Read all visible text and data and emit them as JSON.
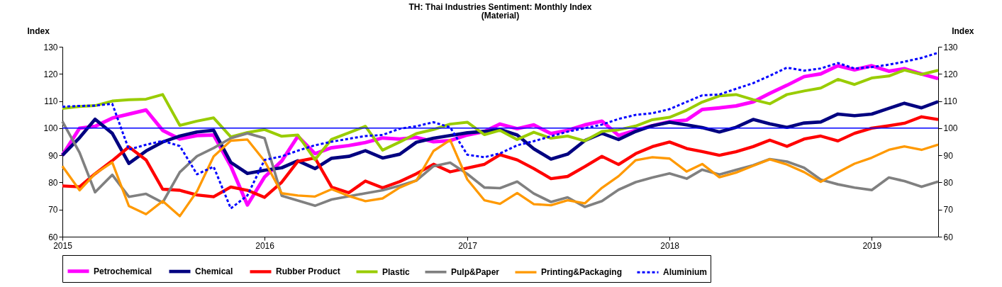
{
  "chart_data": {
    "type": "line",
    "title": "TH: Thai Industries Sentiment: Monthly Index",
    "subtitle": "(Material)",
    "ylabel": "Index",
    "y2label": "Index",
    "x": [
      "2015-01",
      "2015-02",
      "2015-03",
      "2015-04",
      "2015-05",
      "2015-06",
      "2015-07",
      "2015-08",
      "2015-09",
      "2015-10",
      "2015-11",
      "2015-12",
      "2016-01",
      "2016-02",
      "2016-03",
      "2016-04",
      "2016-05",
      "2016-06",
      "2016-07",
      "2016-08",
      "2016-09",
      "2016-10",
      "2016-11",
      "2016-12",
      "2017-01",
      "2017-02",
      "2017-03",
      "2017-04",
      "2017-05",
      "2017-06",
      "2017-07",
      "2017-08",
      "2017-09",
      "2017-10",
      "2017-11",
      "2017-12",
      "2018-01",
      "2018-02",
      "2018-03",
      "2018-04",
      "2018-05",
      "2018-06",
      "2018-07",
      "2018-08",
      "2018-09",
      "2018-10",
      "2018-11",
      "2018-12",
      "2019-01",
      "2019-02",
      "2019-03",
      "2019-04",
      "2019-05"
    ],
    "xlim": [
      "2015-01",
      "2019-05"
    ],
    "xticks": [
      "2015",
      "2016",
      "2017",
      "2018",
      "2019"
    ],
    "ylim": [
      60,
      130
    ],
    "yticks": [
      60,
      70,
      80,
      90,
      100,
      110,
      120,
      130
    ],
    "y2lim": [
      60,
      130
    ],
    "y2ticks": [
      60,
      70,
      80,
      90,
      100,
      110,
      120,
      130
    ],
    "grid": false,
    "legend": "bottom",
    "marker": "none",
    "ref_lines": [
      {
        "axis": "y",
        "value": 100,
        "color": "#0000ff"
      }
    ],
    "series": [
      {
        "name": "Petrochemical",
        "color": "#ff00ff",
        "line_style": "solid",
        "values": [
          90,
          100,
          100.7,
          103.7,
          105.2,
          106.7,
          99.2,
          96,
          97.3,
          97.5,
          86,
          71.7,
          82,
          87.9,
          97,
          90.6,
          92.8,
          93.6,
          94.7,
          96.4,
          96,
          96.6,
          95,
          95.4,
          97.5,
          98.8,
          101.5,
          99.8,
          101.2,
          98,
          99.2,
          101.2,
          102.6,
          97.3,
          99.2,
          100.9,
          102.4,
          103,
          106.9,
          107.5,
          108.2,
          109.7,
          112.8,
          115.8,
          119,
          120,
          123,
          121.5,
          123,
          121,
          121.9,
          120,
          118.3
        ]
      },
      {
        "name": "Chemical",
        "color": "#000080",
        "line_style": "solid",
        "values": [
          90,
          96.5,
          103.3,
          98.1,
          87,
          91.6,
          94.9,
          97.1,
          98.6,
          99.2,
          87.4,
          83.3,
          84.5,
          85.4,
          88,
          85.1,
          88.9,
          89.6,
          91.7,
          89,
          90.4,
          94.8,
          96.3,
          97.3,
          98.3,
          98.8,
          99.5,
          97.5,
          92.4,
          88.6,
          90.4,
          95.4,
          98.1,
          95.8,
          98.8,
          100.9,
          102.2,
          101.2,
          100.2,
          98.6,
          100.3,
          103.2,
          101.6,
          100.3,
          101.9,
          102.3,
          105.2,
          104.6,
          105.2,
          107.3,
          109.2,
          107.5,
          109.8
        ]
      },
      {
        "name": "Rubber Product",
        "color": "#ff0000",
        "line_style": "solid",
        "values": [
          78.7,
          78.4,
          83.2,
          88,
          93.1,
          88.3,
          77.5,
          77.1,
          75.4,
          74.7,
          78.3,
          77.1,
          74.5,
          80.1,
          87.8,
          89,
          78.3,
          76.2,
          80.5,
          78,
          80.3,
          83.2,
          86.7,
          83.9,
          85.3,
          86.7,
          90.2,
          88.3,
          85.1,
          81.4,
          82.2,
          85.8,
          89.6,
          86.6,
          90.6,
          93.2,
          94.9,
          92.5,
          91.4,
          90,
          91.3,
          93.2,
          95.6,
          93.3,
          96,
          97.1,
          95.3,
          98.1,
          100,
          100.9,
          101.8,
          104.2,
          103.2
        ]
      },
      {
        "name": "Plastic",
        "color": "#99cc00",
        "line_style": "solid",
        "values": [
          107.3,
          108,
          108.3,
          110,
          110.5,
          110.7,
          112.4,
          101,
          102.6,
          103.8,
          96.8,
          98.4,
          99.5,
          97,
          97.5,
          88.4,
          95.9,
          98.3,
          100.7,
          91.9,
          94.9,
          98,
          99.5,
          101.5,
          102.2,
          97.6,
          99.2,
          95.8,
          98.5,
          96.3,
          97.1,
          95.3,
          98.8,
          99.4,
          100.8,
          103.1,
          104,
          106.6,
          109.6,
          111.9,
          112.4,
          110.5,
          109,
          112.4,
          113.7,
          114.8,
          118,
          116.1,
          118.5,
          119.2,
          121.4,
          119.8,
          121.3
        ]
      },
      {
        "name": "Pulp&Paper",
        "color": "#808080",
        "line_style": "solid",
        "values": [
          102.5,
          91,
          76.4,
          82.8,
          74.7,
          75.8,
          72.6,
          83.8,
          89.7,
          92.7,
          96.3,
          98.1,
          96.3,
          75.1,
          73.3,
          71.4,
          73.7,
          74.9,
          76,
          77.1,
          78.8,
          80.7,
          86,
          87.3,
          83.1,
          78.1,
          77.9,
          80.3,
          75.9,
          72.8,
          74.5,
          71,
          73.1,
          77.3,
          80.1,
          81.8,
          83.3,
          81.4,
          84.7,
          82.9,
          84.6,
          86.3,
          88.6,
          87.7,
          85.4,
          81,
          79.3,
          78.1,
          77.2,
          81.8,
          80.5,
          78.4,
          80.3
        ]
      },
      {
        "name": "Printing&Packaging",
        "color": "#ff9900",
        "line_style": "solid",
        "values": [
          86,
          77.1,
          83.2,
          87.4,
          71.3,
          68.3,
          73.1,
          67.6,
          76.7,
          89.6,
          95.4,
          95.8,
          87.9,
          76,
          75.2,
          74.8,
          77.5,
          75,
          73.1,
          74.1,
          78.1,
          80.7,
          91.6,
          95.6,
          81.1,
          73.4,
          72.1,
          76.1,
          72,
          71.6,
          73.4,
          72.3,
          78,
          82.3,
          88.2,
          89.3,
          88.8,
          84,
          86.8,
          81.9,
          83.6,
          86.1,
          88.5,
          86.6,
          83.8,
          80.2,
          83.7,
          86.9,
          89.1,
          92,
          93.3,
          92,
          93.9
        ]
      },
      {
        "name": "Aluminium",
        "color": "#0000ff",
        "line_style": "dashed",
        "values": [
          107.9,
          108.2,
          108.3,
          109,
          92.1,
          93.9,
          95.3,
          93.4,
          83,
          85.8,
          70.4,
          75.2,
          88.3,
          89.6,
          91.7,
          93.7,
          95,
          96.1,
          97.1,
          97.5,
          99.8,
          100.7,
          102.2,
          100.3,
          90.2,
          89.3,
          90.7,
          93.7,
          95.2,
          97,
          98.7,
          100,
          101.3,
          103.4,
          104.9,
          105.5,
          107,
          109.7,
          112.1,
          112.4,
          114.5,
          116.6,
          119.3,
          122.3,
          121.2,
          122,
          124,
          122,
          122.5,
          123.4,
          124.5,
          125.9,
          127.8
        ]
      }
    ]
  }
}
